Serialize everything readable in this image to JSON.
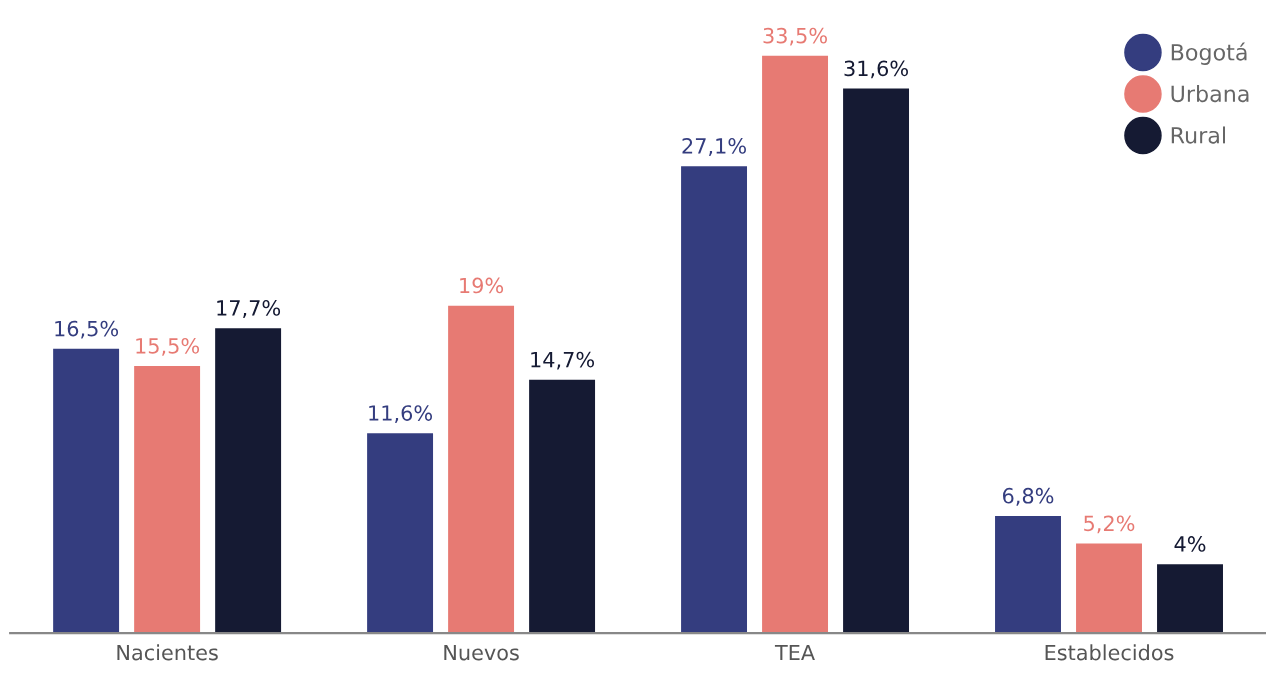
{
  "chart_data": {
    "type": "bar",
    "categories": [
      "Nacientes",
      "Nuevos",
      "TEA",
      "Establecidos"
    ],
    "series": [
      {
        "name": "Bogotá",
        "color": "#343d7f",
        "values": [
          16.5,
          11.6,
          27.1,
          6.8
        ],
        "value_labels": [
          "16,5%",
          "11,6%",
          "27,1%",
          "6,8%"
        ]
      },
      {
        "name": "Urbana",
        "color": "#e77a73",
        "values": [
          15.5,
          19,
          33.5,
          5.2
        ],
        "value_labels": [
          "15,5%",
          "19%",
          "33,5%",
          "5,2%"
        ]
      },
      {
        "name": "Rural",
        "color": "#151a33",
        "values": [
          17.7,
          14.7,
          31.6,
          4
        ],
        "value_labels": [
          "17,7%",
          "14,7%",
          "31,6%",
          "4%"
        ]
      }
    ],
    "grid": false,
    "legend": "top right",
    "tick_labels": "x"
  }
}
